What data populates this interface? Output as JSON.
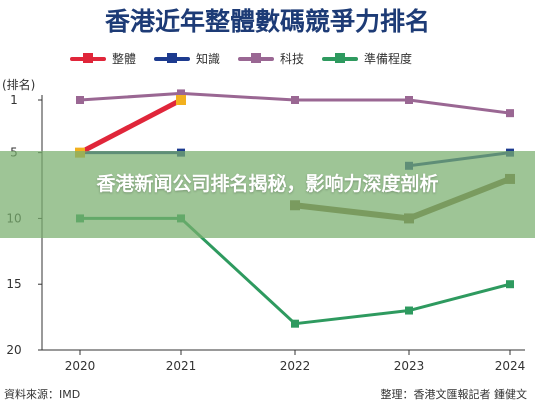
{
  "chart_data": {
    "type": "line",
    "title": "香港近年整體數碼競爭力排名",
    "ylabel": "(排名)",
    "categories": [
      "2020",
      "2021",
      "2022",
      "2023",
      "2024"
    ],
    "ylim": [
      20,
      1
    ],
    "yticks": [
      "1",
      "5",
      "10",
      "15",
      "20"
    ],
    "legend_position": "top",
    "series": [
      {
        "name": "整體",
        "color": "#e0263a",
        "values": [
          5,
          1,
          null,
          null,
          null
        ]
      },
      {
        "name": "知識",
        "color": "#1d3b8f",
        "values": [
          5,
          5,
          null,
          6,
          5
        ]
      },
      {
        "name": "科技",
        "color": "#9a6793",
        "values": [
          1,
          0,
          1,
          1,
          2
        ]
      },
      {
        "name": "準備程度",
        "color": "#2e9a5f",
        "values": [
          10,
          10,
          18,
          17,
          15
        ]
      }
    ],
    "series_overlay_segments": [
      {
        "color": "#7e6a3c",
        "from_year": "2022",
        "values": [
          9,
          10,
          7
        ]
      }
    ]
  },
  "overlay_headline": "香港新闻公司排名揭秘，影响力深度剖析",
  "source_text": "資料來源：IMD",
  "credit_text": "整理：香港文匯報記者 鍾健文"
}
